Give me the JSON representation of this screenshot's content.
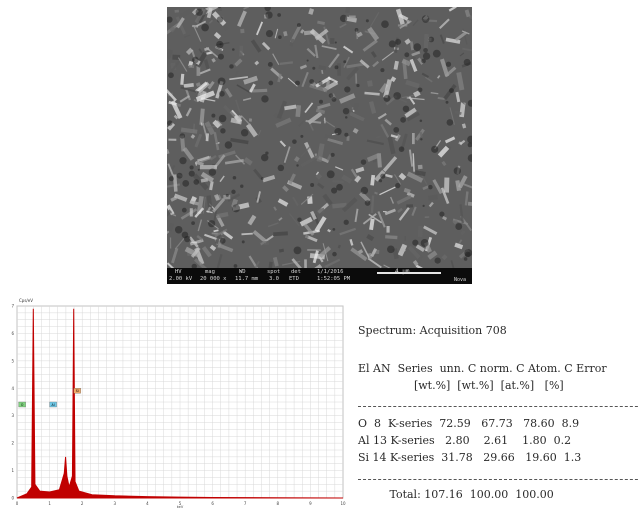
{
  "sem_image": {
    "info_bar": {
      "hv": "HV",
      "hv_value": "2.00 kV",
      "mag": "mag",
      "mag_value": "20 000 x",
      "wd": "WD",
      "wd_value": "11.7 mm",
      "spot": "spot",
      "spot_value": "3.0",
      "det": "det",
      "det_value": "ETD",
      "date": "1/1/2016",
      "time": "1:52:05 PM",
      "scale_label": "4 µm",
      "instrument": "Nova"
    }
  },
  "spectrum": {
    "units_label": "Cps/eV",
    "peak_markers": [
      {
        "label": "O",
        "color": "#7fd27f"
      },
      {
        "label": "Al",
        "color": "#6fc9e8"
      },
      {
        "label": "Si",
        "color": "#f0a868"
      }
    ],
    "colors": {
      "trace": "#c00000",
      "grid": "#d8d8d8"
    }
  },
  "chart_data": {
    "type": "area",
    "xlabel": "keV",
    "ylabel": "Cps/eV",
    "xlim": [
      0,
      10
    ],
    "ylim": [
      0,
      7
    ],
    "x_ticks": [
      "0",
      "1",
      "2",
      "3",
      "4",
      "5",
      "6",
      "7",
      "8",
      "9",
      "10"
    ],
    "y_ticks": [
      "0",
      "1",
      "2",
      "3",
      "4",
      "5",
      "6",
      "7"
    ],
    "grid": true,
    "series": [
      {
        "values": [
          [
            0.0,
            0.0
          ],
          [
            0.3,
            0.15
          ],
          [
            0.45,
            0.4
          ],
          [
            0.5,
            6.9
          ],
          [
            0.55,
            0.5
          ],
          [
            0.7,
            0.25
          ],
          [
            1.0,
            0.22
          ],
          [
            1.3,
            0.3
          ],
          [
            1.45,
            0.9
          ],
          [
            1.49,
            1.5
          ],
          [
            1.53,
            0.8
          ],
          [
            1.6,
            0.4
          ],
          [
            1.7,
            0.8
          ],
          [
            1.74,
            6.9
          ],
          [
            1.78,
            0.6
          ],
          [
            1.9,
            0.25
          ],
          [
            2.3,
            0.12
          ],
          [
            3.0,
            0.08
          ],
          [
            4.0,
            0.05
          ],
          [
            5.0,
            0.03
          ],
          [
            6.0,
            0.02
          ],
          [
            8.0,
            0.01
          ],
          [
            10.0,
            0.0
          ]
        ]
      }
    ]
  },
  "results_table": {
    "title": "Spectrum: Acquisition 708",
    "header1": "El AN  Series  unn. C norm. C Atom. C Error",
    "header2": "                [wt.%]  [wt.%]  [at.%]   [%]",
    "rows": [
      "O  8  K-series  72.59   67.73   78.60  8.9",
      "Al 13 K-series   2.80    2.61    1.80  0.2",
      "Si 14 K-series  31.78   29.66   19.60  1.3"
    ],
    "total": "         Total: 107.16  100.00  100.00"
  }
}
